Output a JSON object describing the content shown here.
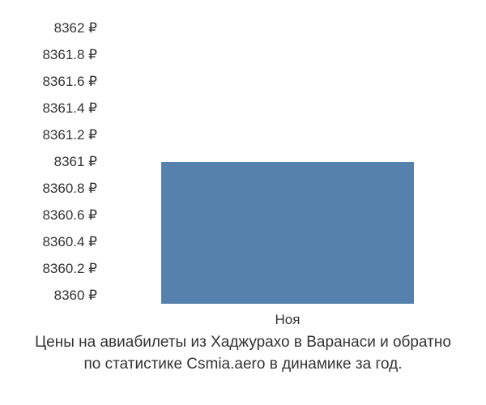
{
  "chart": {
    "type": "bar",
    "y_min": 8360,
    "y_max": 8362,
    "y_step": 0.2,
    "y_unit": "₽",
    "y_ticks": [
      "8362 ₽",
      "8361.8 ₽",
      "8361.6 ₽",
      "8361.4 ₽",
      "8361.2 ₽",
      "8361 ₽",
      "8360.8 ₽",
      "8360.6 ₽",
      "8360.4 ₽",
      "8360.2 ₽",
      "8360 ₽"
    ],
    "categories": [
      "Ноя"
    ],
    "values": [
      8361
    ],
    "bar_color": "#5781ad",
    "bar_width": 0.68,
    "background_color": "#ffffff",
    "tick_font_size": 17,
    "tick_font_color": "#333333",
    "tick_font_family": "Arial"
  },
  "caption": {
    "line1": "Цены на авиабилеты из Хаджурахо в Варанаси и обратно",
    "line2": "по статистике Csmia.aero в динамике за год.",
    "font_size": 19,
    "font_color": "#333333",
    "font_family": "Arial"
  }
}
